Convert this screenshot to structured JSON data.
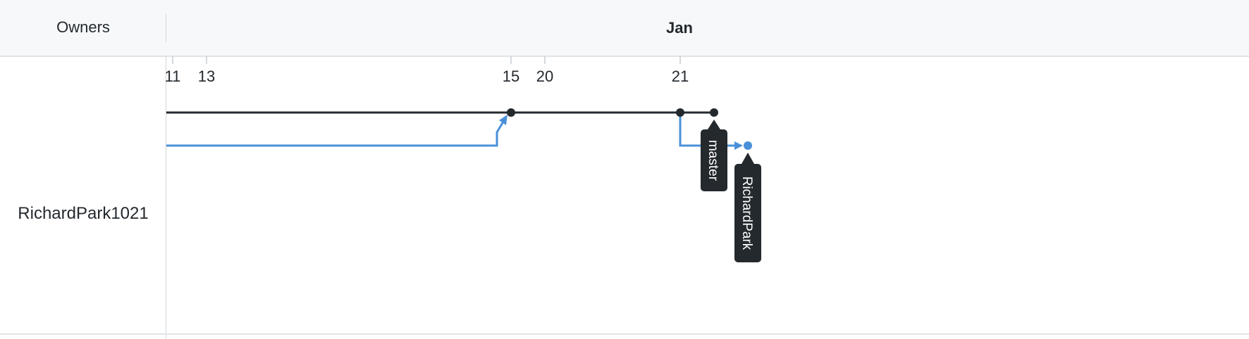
{
  "header": {
    "owners_label": "Owners",
    "month": "Jan"
  },
  "owner": {
    "name": "RichardPark1021"
  },
  "timeline": {
    "days": [
      "11",
      "13",
      "15",
      "20",
      "21"
    ]
  },
  "branches": [
    {
      "name": "master",
      "color": "#24292e"
    },
    {
      "name": "RichardPark",
      "color": "#4a90d9"
    }
  ],
  "colors": {
    "master_line": "#24292e",
    "fork_line": "#4a90d9",
    "header_bg": "#f6f8fa",
    "tag_bg": "#24292e"
  }
}
